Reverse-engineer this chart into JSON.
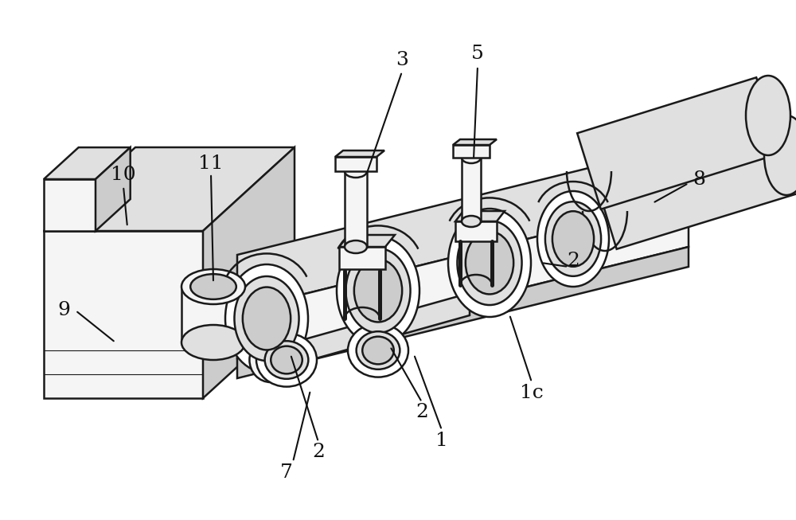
{
  "bg": "#ffffff",
  "ec": "#1a1a1a",
  "lw": 1.8,
  "fw": 10.0,
  "fh": 6.53,
  "dpi": 100,
  "face_light": "#f5f5f5",
  "face_mid": "#e0e0e0",
  "face_dark": "#cccccc",
  "face_darker": "#b8b8b8",
  "label_fs": 18
}
